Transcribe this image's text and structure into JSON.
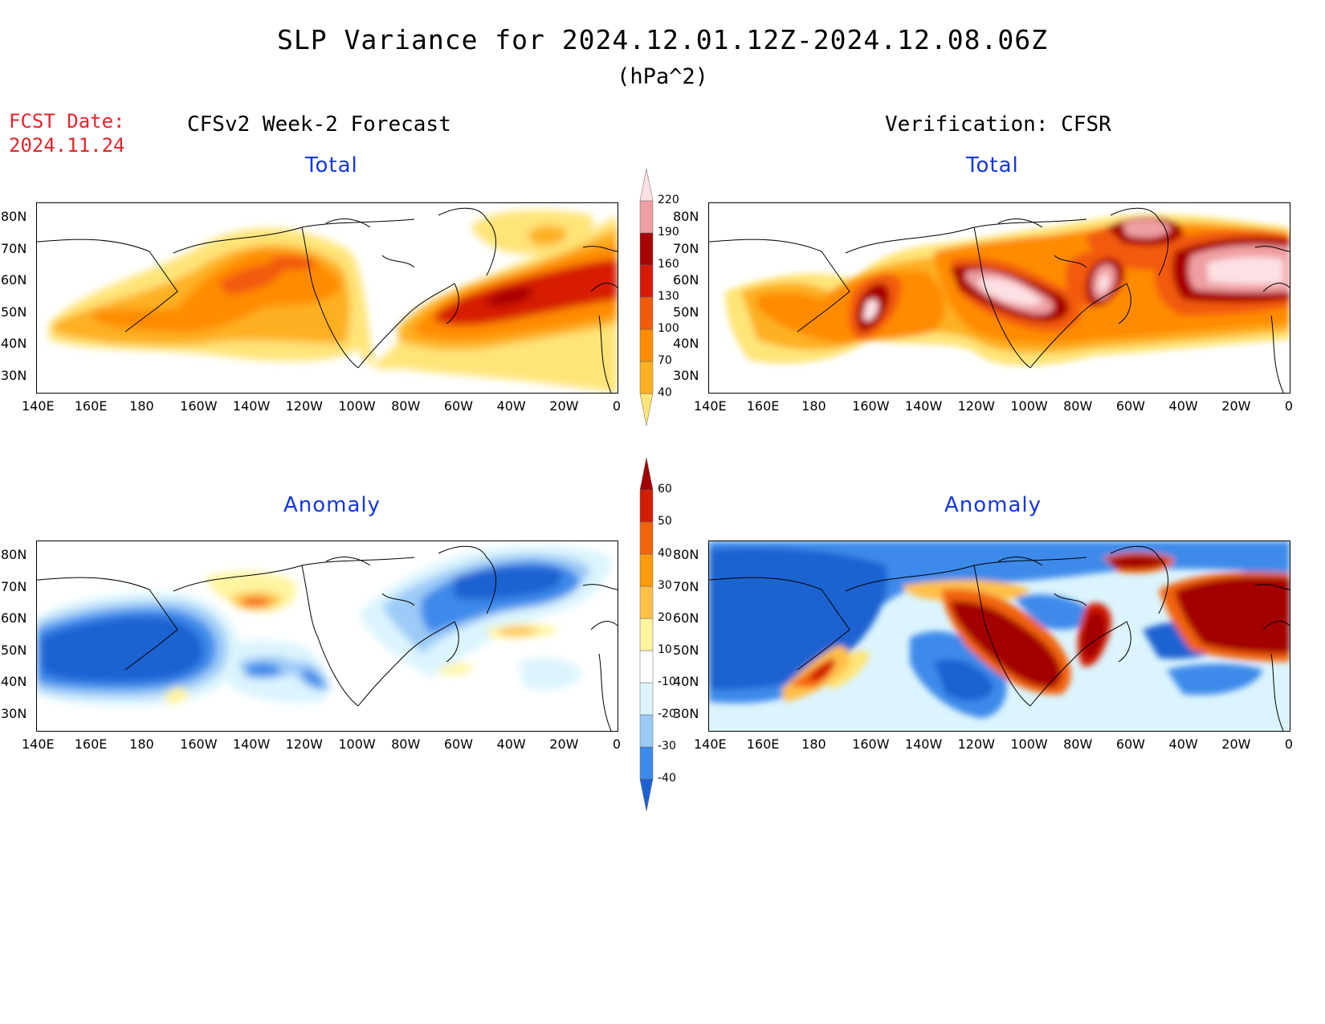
{
  "title": "SLP Variance for 2024.12.01.12Z-2024.12.08.06Z",
  "units": "(hPa^2)",
  "fcst_date_label": "FCST Date:",
  "fcst_date": "2024.11.24",
  "left_column_title": "CFSv2 Week-2 Forecast",
  "right_column_title": "Verification: CFSR",
  "panels": [
    {
      "id": "forecast-total",
      "title": "Total"
    },
    {
      "id": "verification-total",
      "title": "Total"
    },
    {
      "id": "forecast-anomaly",
      "title": "Anomaly"
    },
    {
      "id": "verification-anomaly",
      "title": "Anomaly"
    }
  ],
  "lat_labels": [
    "80N",
    "70N",
    "60N",
    "50N",
    "40N",
    "30N"
  ],
  "lon_labels": [
    "140E",
    "160E",
    "180",
    "160W",
    "140W",
    "120W",
    "100W",
    "80W",
    "60W",
    "40W",
    "20W",
    "0"
  ],
  "colorbar_total": {
    "levels": [
      "40",
      "70",
      "100",
      "130",
      "160",
      "190",
      "220"
    ],
    "colors": [
      "#ffe478",
      "#fdb022",
      "#ff8c00",
      "#f25a0a",
      "#d71a06",
      "#a90404",
      "#ef9fa1",
      "#fde0e4"
    ]
  },
  "colorbar_anomaly": {
    "levels": [
      "-40",
      "-30",
      "-20",
      "-10",
      "10",
      "20",
      "30",
      "40",
      "50",
      "60"
    ],
    "colors": [
      "#1e62d1",
      "#3d8aea",
      "#9dcbf7",
      "#dcf4fd",
      "#ffffff",
      "#fff4a0",
      "#ffc04a",
      "#ff9a0c",
      "#f2640c",
      "#d21e04",
      "#a30000"
    ]
  }
}
